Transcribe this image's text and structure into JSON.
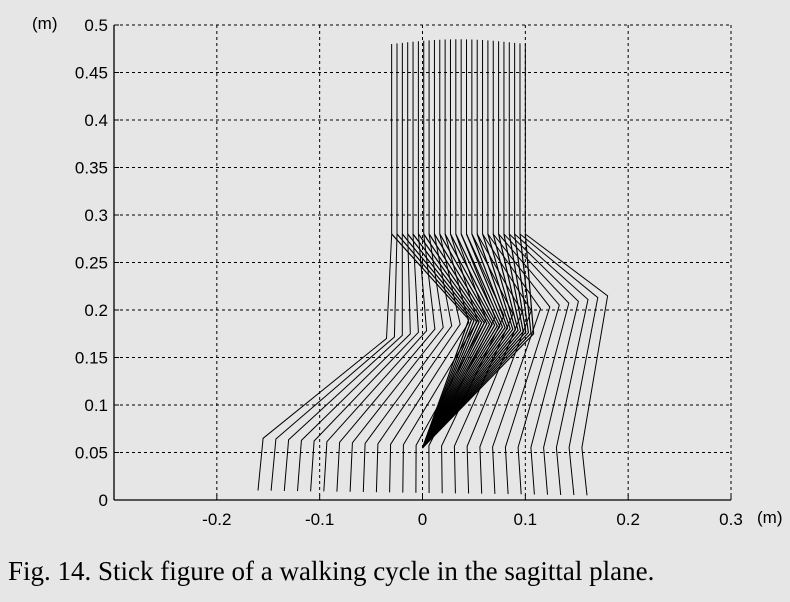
{
  "caption": "Fig. 14. Stick figure of a walking cycle in the sagittal plane.",
  "chart_data": {
    "type": "line",
    "title": "",
    "xlabel": "(m)",
    "ylabel": "(m)",
    "xlim": [
      -0.3,
      0.3
    ],
    "ylim": [
      0,
      0.5
    ],
    "x_ticks": [
      -0.2,
      -0.1,
      0,
      0.1,
      0.2,
      0.3
    ],
    "y_ticks": [
      0,
      0.05,
      0.1,
      0.15,
      0.2,
      0.25,
      0.3,
      0.35,
      0.4,
      0.45,
      0.5
    ],
    "x_tick_labels": [
      "-0.2",
      "-0.1",
      "0",
      "0.1",
      "0.2",
      "0.3"
    ],
    "y_tick_labels": [
      "0",
      "0.05",
      "0.1",
      "0.15",
      "0.2",
      "0.25",
      "0.3",
      "0.35",
      "0.4",
      "0.45",
      "0.5"
    ],
    "grid": true,
    "line_color": "#000000",
    "swing_leg": {
      "frames": 26,
      "hip_x": [
        -0.03,
        0.1
      ],
      "hip_y": 0.28,
      "trunk_top_y": [
        0.48,
        0.485
      ],
      "knee_start": [
        -0.035,
        0.17
      ],
      "knee_mid": [
        0.06,
        0.19
      ],
      "knee_end": [
        0.18,
        0.215
      ],
      "ankle_start": [
        -0.155,
        0.065
      ],
      "ankle_mid": [
        0.0,
        0.055
      ],
      "ankle_end": [
        0.155,
        0.055
      ],
      "toe_start": [
        -0.16,
        0.01
      ],
      "toe_end": [
        0.16,
        0.005
      ]
    },
    "stance_leg": {
      "frames": 26,
      "hip_x": [
        -0.03,
        0.1
      ],
      "hip_y": 0.28,
      "knee_start": [
        0.045,
        0.19
      ],
      "knee_end": [
        0.108,
        0.175
      ],
      "ankle": [
        0.0,
        0.055
      ]
    }
  }
}
